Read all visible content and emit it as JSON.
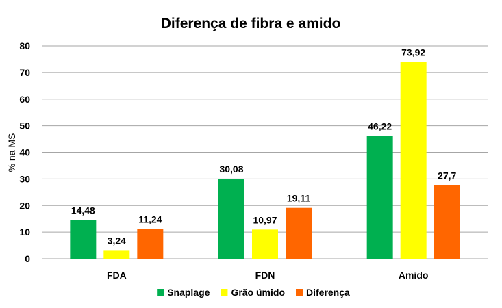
{
  "chart_data": {
    "type": "bar",
    "title": "Diferença  de fibra e amido",
    "xlabel": "",
    "ylabel": "% na MS",
    "ylim": [
      0,
      80
    ],
    "yticks": [
      "0",
      "10",
      "20",
      "30",
      "40",
      "50",
      "60",
      "70",
      "80"
    ],
    "grid": true,
    "legend_position": "bottom",
    "categories": [
      "FDA",
      "FDN",
      "Amido"
    ],
    "series": [
      {
        "name": "Snaplage",
        "color": "#00b050",
        "values": [
          14.48,
          30.08,
          46.22
        ],
        "labels": [
          "14,48",
          "30,08",
          "46,22"
        ]
      },
      {
        "name": "Grão úmido",
        "color": "#ffff00",
        "values": [
          3.24,
          10.97,
          73.92
        ],
        "labels": [
          "3,24",
          "10,97",
          "73,92"
        ]
      },
      {
        "name": "Diferença",
        "color": "#ff6600",
        "values": [
          11.24,
          19.11,
          27.7
        ],
        "labels": [
          "11,24",
          "19,11",
          "27,7"
        ]
      }
    ]
  }
}
